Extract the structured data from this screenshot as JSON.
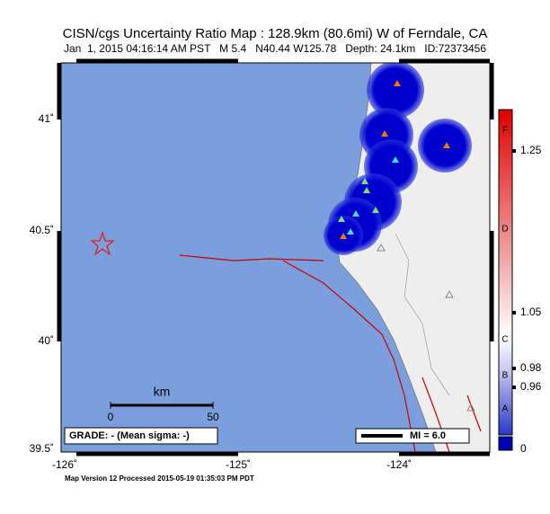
{
  "header": {
    "title": "CISN/cgs Uncertainty Ratio Map : 128.9km (80.6mi) W of Ferndale, CA",
    "subtitle": "Jan  1, 2015 04:16:14 AM PST   M 5.4   N40.44 W125.78   Depth: 24.1km   ID:72373456"
  },
  "axes": {
    "lat_labels": [
      "41˚",
      "40.5˚",
      "40˚",
      "39.5˚"
    ],
    "lon_labels": [
      "-126˚",
      "-125˚",
      "-124˚"
    ]
  },
  "scale_bar": {
    "unit": "km",
    "labels": [
      "0",
      "50"
    ]
  },
  "grade": "GRADE: - (Mean sigma: -)",
  "mi_legend": "MI = 6.0",
  "colorbar": {
    "labels": [
      "1.25",
      "1.05",
      "0.98",
      "0.96",
      "0"
    ],
    "letters": [
      "F",
      "D",
      "C",
      "B",
      "A"
    ]
  },
  "footer": "Map Version 12 Processed 2015-05-19 01:35:03 PM PDT"
}
